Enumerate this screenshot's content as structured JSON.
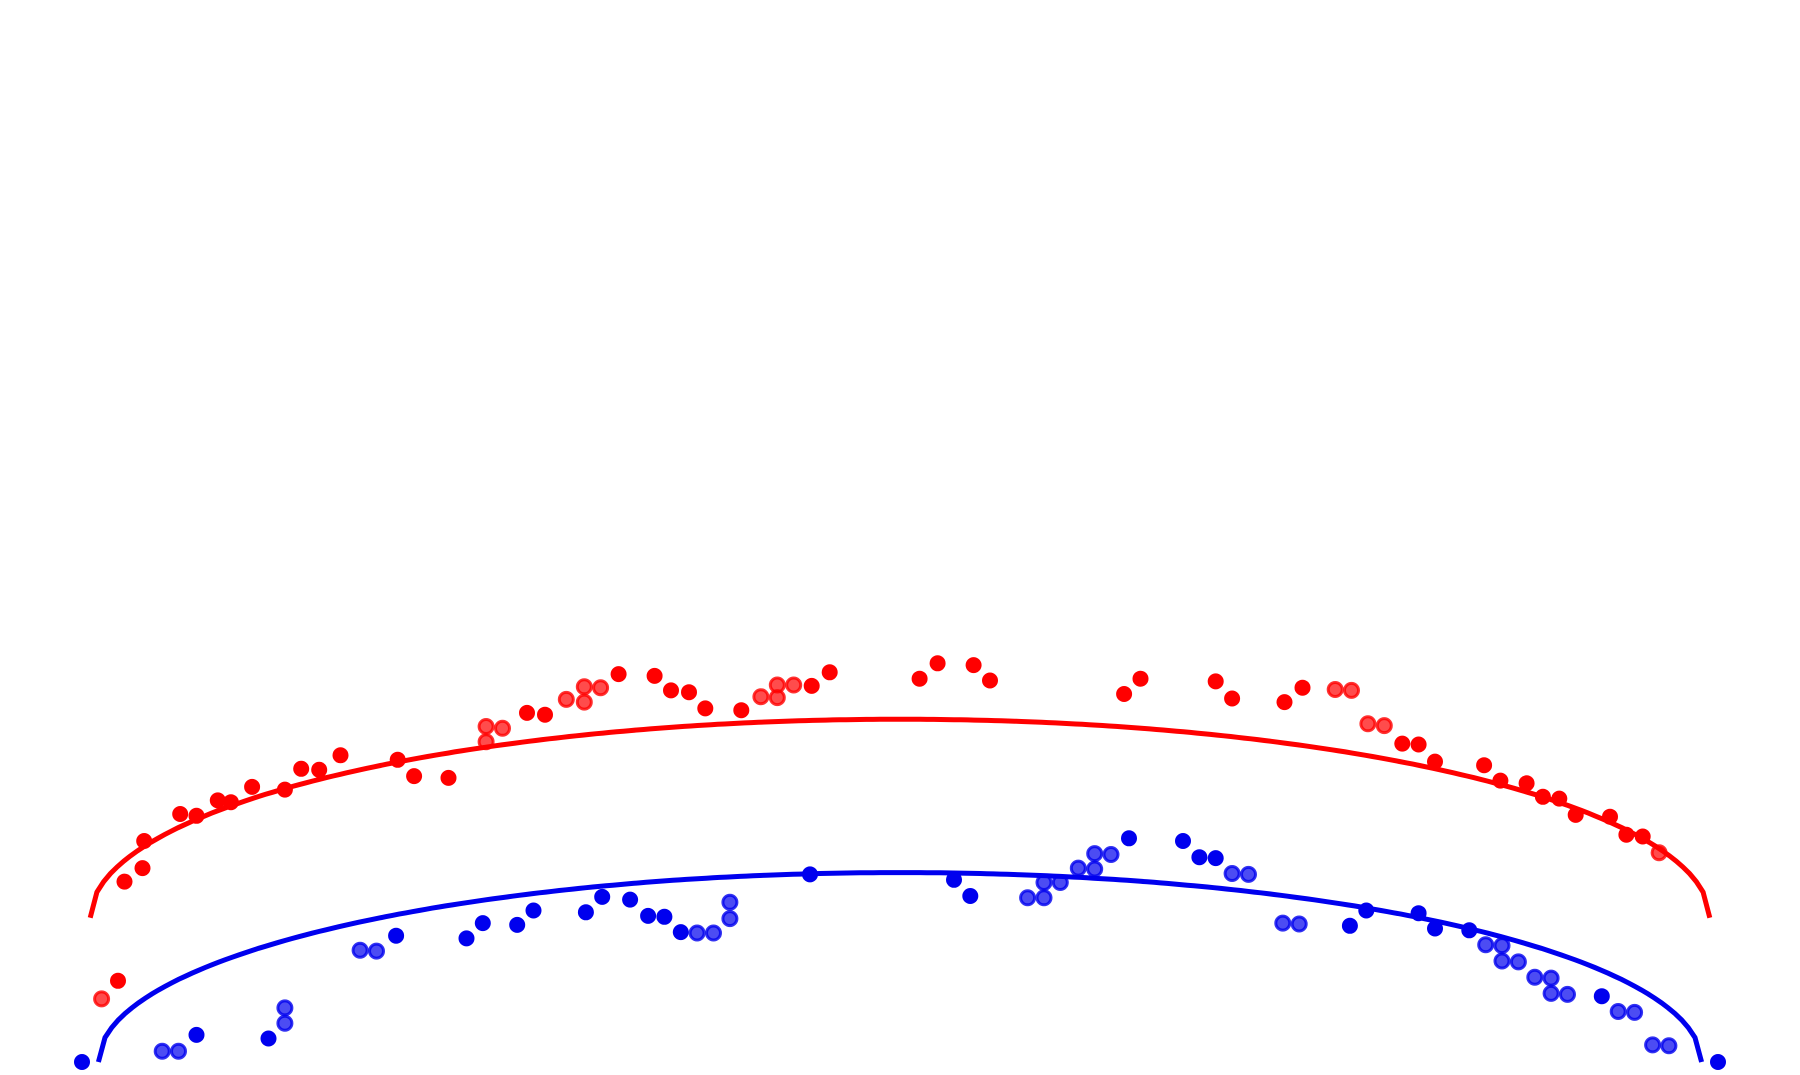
{
  "chart_data": {
    "type": "scatter",
    "title": "",
    "xlabel": "",
    "ylabel": "",
    "axes_visible": false,
    "grid": false,
    "legend": "none",
    "xlim": [
      0,
      100
    ],
    "ylim": [
      0,
      100
    ],
    "series": [
      {
        "color": "#ff0000",
        "curve": {
          "x0": 0.5,
          "x1": 99.5,
          "xc": 50,
          "y_base": 16,
          "y_peak": 38
        },
        "points": [
          {
            "x": 1.2,
            "y": 7,
            "open": true
          },
          {
            "x": 2.2,
            "y": 9,
            "open": false
          },
          {
            "x": 2.6,
            "y": 20,
            "open": false
          },
          {
            "x": 3.7,
            "y": 21.5,
            "open": false
          },
          {
            "x": 3.8,
            "y": 24.5,
            "open": false
          },
          {
            "x": 6,
            "y": 27.5,
            "open": false
          },
          {
            "x": 7,
            "y": 27.3,
            "open": false
          },
          {
            "x": 8.3,
            "y": 29,
            "open": false
          },
          {
            "x": 9.1,
            "y": 28.8,
            "open": false
          },
          {
            "x": 10.4,
            "y": 30.5,
            "open": false
          },
          {
            "x": 12.4,
            "y": 30.2,
            "open": false
          },
          {
            "x": 13.4,
            "y": 32.5,
            "open": false
          },
          {
            "x": 14.5,
            "y": 32.4,
            "open": false
          },
          {
            "x": 15.8,
            "y": 34,
            "open": false
          },
          {
            "x": 19.3,
            "y": 33.5,
            "open": false
          },
          {
            "x": 20.3,
            "y": 31.7,
            "open": false
          },
          {
            "x": 22.4,
            "y": 31.5,
            "open": false
          },
          {
            "x": 24.7,
            "y": 35.5,
            "open": true
          },
          {
            "x": 24.7,
            "y": 37.2,
            "open": true
          },
          {
            "x": 25.7,
            "y": 37,
            "open": true
          },
          {
            "x": 27.2,
            "y": 38.7,
            "open": false
          },
          {
            "x": 28.3,
            "y": 38.5,
            "open": false
          },
          {
            "x": 29.6,
            "y": 40.2,
            "open": true
          },
          {
            "x": 30.7,
            "y": 39.9,
            "open": true
          },
          {
            "x": 30.7,
            "y": 41.6,
            "open": true
          },
          {
            "x": 31.7,
            "y": 41.5,
            "open": true
          },
          {
            "x": 32.8,
            "y": 43,
            "open": false
          },
          {
            "x": 35,
            "y": 42.8,
            "open": false
          },
          {
            "x": 36,
            "y": 41.2,
            "open": false
          },
          {
            "x": 37.1,
            "y": 41,
            "open": false
          },
          {
            "x": 38.1,
            "y": 39.2,
            "open": false
          },
          {
            "x": 40.3,
            "y": 39,
            "open": false
          },
          {
            "x": 41.5,
            "y": 40.5,
            "open": true
          },
          {
            "x": 42.5,
            "y": 40.4,
            "open": true
          },
          {
            "x": 42.5,
            "y": 41.8,
            "open": true
          },
          {
            "x": 43.5,
            "y": 41.8,
            "open": true
          },
          {
            "x": 44.6,
            "y": 41.7,
            "open": false
          },
          {
            "x": 45.7,
            "y": 43.2,
            "open": false
          },
          {
            "x": 51.2,
            "y": 42.5,
            "open": false
          },
          {
            "x": 52.3,
            "y": 44.2,
            "open": false
          },
          {
            "x": 54.5,
            "y": 44,
            "open": false
          },
          {
            "x": 55.5,
            "y": 42.3,
            "open": false
          },
          {
            "x": 63.7,
            "y": 40.8,
            "open": false
          },
          {
            "x": 64.7,
            "y": 42.5,
            "open": false
          },
          {
            "x": 69.3,
            "y": 42.2,
            "open": false
          },
          {
            "x": 70.3,
            "y": 40.3,
            "open": false
          },
          {
            "x": 73.5,
            "y": 39.9,
            "open": false
          },
          {
            "x": 74.6,
            "y": 41.5,
            "open": false
          },
          {
            "x": 76.6,
            "y": 41.3,
            "open": true
          },
          {
            "x": 77.6,
            "y": 41.2,
            "open": true
          },
          {
            "x": 78.6,
            "y": 37.5,
            "open": true
          },
          {
            "x": 79.6,
            "y": 37.3,
            "open": true
          },
          {
            "x": 80.7,
            "y": 35.3,
            "open": false
          },
          {
            "x": 81.7,
            "y": 35.2,
            "open": false
          },
          {
            "x": 82.7,
            "y": 33.3,
            "open": false
          },
          {
            "x": 85.7,
            "y": 32.9,
            "open": false
          },
          {
            "x": 86.7,
            "y": 31.2,
            "open": false
          },
          {
            "x": 88.3,
            "y": 30.9,
            "open": false
          },
          {
            "x": 89.3,
            "y": 29.4,
            "open": false
          },
          {
            "x": 90.3,
            "y": 29.2,
            "open": false
          },
          {
            "x": 91.3,
            "y": 27.4,
            "open": false
          },
          {
            "x": 93.4,
            "y": 27.2,
            "open": false
          },
          {
            "x": 94.4,
            "y": 25.2,
            "open": false
          },
          {
            "x": 95.4,
            "y": 25,
            "open": false
          },
          {
            "x": 96.4,
            "y": 23.2,
            "open": true
          }
        ]
      },
      {
        "color": "#0000ee",
        "curve": {
          "x0": 1,
          "x1": 99,
          "xc": 50,
          "y_base": 0,
          "y_peak": 21
        },
        "points": [
          {
            "x": 0,
            "y": 0,
            "open": false
          },
          {
            "x": 4.9,
            "y": 1.2,
            "open": true
          },
          {
            "x": 5.9,
            "y": 1.2,
            "open": true
          },
          {
            "x": 7,
            "y": 3,
            "open": false
          },
          {
            "x": 11.4,
            "y": 2.6,
            "open": false
          },
          {
            "x": 12.4,
            "y": 4.3,
            "open": true
          },
          {
            "x": 12.4,
            "y": 6,
            "open": true
          },
          {
            "x": 17,
            "y": 12.4,
            "open": true
          },
          {
            "x": 18,
            "y": 12.3,
            "open": true
          },
          {
            "x": 19.2,
            "y": 14,
            "open": false
          },
          {
            "x": 23.5,
            "y": 13.7,
            "open": false
          },
          {
            "x": 24.5,
            "y": 15.4,
            "open": false
          },
          {
            "x": 26.6,
            "y": 15.2,
            "open": false
          },
          {
            "x": 27.6,
            "y": 16.8,
            "open": false
          },
          {
            "x": 30.8,
            "y": 16.6,
            "open": false
          },
          {
            "x": 31.8,
            "y": 18.3,
            "open": false
          },
          {
            "x": 33.5,
            "y": 18,
            "open": false
          },
          {
            "x": 34.6,
            "y": 16.2,
            "open": false
          },
          {
            "x": 35.6,
            "y": 16.1,
            "open": false
          },
          {
            "x": 36.6,
            "y": 14.4,
            "open": false
          },
          {
            "x": 37.6,
            "y": 14.3,
            "open": true
          },
          {
            "x": 38.6,
            "y": 14.3,
            "open": true
          },
          {
            "x": 39.6,
            "y": 15.9,
            "open": true
          },
          {
            "x": 39.6,
            "y": 17.7,
            "open": true
          },
          {
            "x": 44.5,
            "y": 20.8,
            "open": false
          },
          {
            "x": 53.3,
            "y": 20.2,
            "open": false
          },
          {
            "x": 54.3,
            "y": 18.4,
            "open": false
          },
          {
            "x": 57.8,
            "y": 18.2,
            "open": true
          },
          {
            "x": 58.8,
            "y": 18.2,
            "open": true
          },
          {
            "x": 58.8,
            "y": 19.9,
            "open": true
          },
          {
            "x": 59.8,
            "y": 19.9,
            "open": true
          },
          {
            "x": 60.9,
            "y": 21.5,
            "open": true
          },
          {
            "x": 61.9,
            "y": 21.4,
            "open": true
          },
          {
            "x": 61.9,
            "y": 23.1,
            "open": true
          },
          {
            "x": 62.9,
            "y": 23,
            "open": true
          },
          {
            "x": 64,
            "y": 24.8,
            "open": false
          },
          {
            "x": 67.3,
            "y": 24.5,
            "open": false
          },
          {
            "x": 68.3,
            "y": 22.7,
            "open": false
          },
          {
            "x": 69.3,
            "y": 22.6,
            "open": false
          },
          {
            "x": 70.3,
            "y": 20.9,
            "open": true
          },
          {
            "x": 71.3,
            "y": 20.8,
            "open": true
          },
          {
            "x": 73.4,
            "y": 15.4,
            "open": true
          },
          {
            "x": 74.4,
            "y": 15.3,
            "open": true
          },
          {
            "x": 77.5,
            "y": 15.1,
            "open": false
          },
          {
            "x": 78.5,
            "y": 16.8,
            "open": false
          },
          {
            "x": 81.7,
            "y": 16.5,
            "open": false
          },
          {
            "x": 82.7,
            "y": 14.8,
            "open": false
          },
          {
            "x": 84.8,
            "y": 14.6,
            "open": false
          },
          {
            "x": 85.8,
            "y": 13,
            "open": true
          },
          {
            "x": 86.8,
            "y": 12.9,
            "open": true
          },
          {
            "x": 86.8,
            "y": 11.2,
            "open": true
          },
          {
            "x": 87.8,
            "y": 11.1,
            "open": true
          },
          {
            "x": 88.8,
            "y": 9.4,
            "open": true
          },
          {
            "x": 89.8,
            "y": 9.3,
            "open": true
          },
          {
            "x": 89.8,
            "y": 7.6,
            "open": true
          },
          {
            "x": 90.8,
            "y": 7.5,
            "open": true
          },
          {
            "x": 92.9,
            "y": 7.3,
            "open": false
          },
          {
            "x": 93.9,
            "y": 5.6,
            "open": true
          },
          {
            "x": 94.9,
            "y": 5.5,
            "open": true
          },
          {
            "x": 96,
            "y": 1.9,
            "open": true
          },
          {
            "x": 97,
            "y": 1.8,
            "open": true
          },
          {
            "x": 100,
            "y": 0,
            "open": false
          }
        ]
      }
    ]
  }
}
